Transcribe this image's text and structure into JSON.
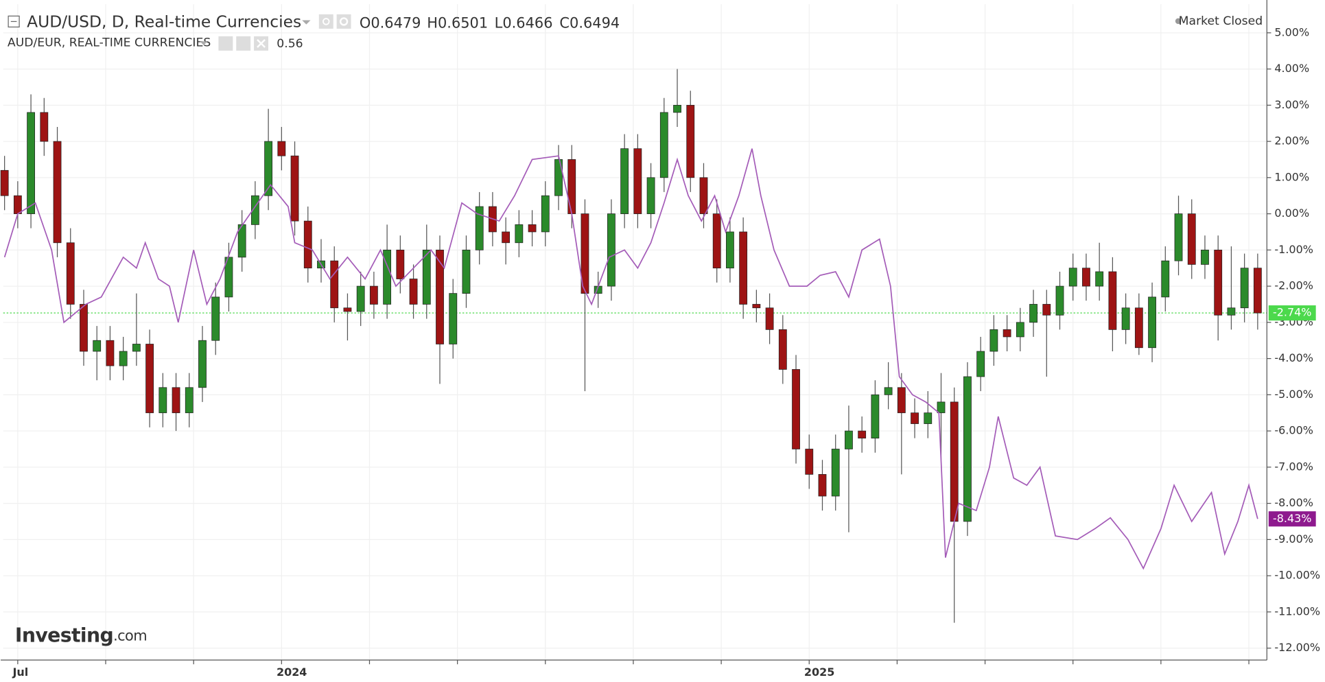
{
  "chart_data": {
    "type": "candlestick",
    "title": "AUD/USD, D, Real-time Currencies",
    "ohlc_header": [
      {
        "key": "O",
        "value": "0.6479"
      },
      {
        "key": "H",
        "value": "0.6501"
      },
      {
        "key": "L",
        "value": "0.6466"
      },
      {
        "key": "C",
        "value": "0.6494"
      }
    ],
    "status": "Market Closed",
    "logo": {
      "brand": "Investing",
      "suffix": ".com"
    },
    "ylim": [
      -12.33,
      5.79
    ],
    "yticks": [
      {
        "value": 5,
        "label": "5.00%"
      },
      {
        "value": 4,
        "label": "4.00%"
      },
      {
        "value": 3,
        "label": "3.00%"
      },
      {
        "value": 2,
        "label": "2.00%"
      },
      {
        "value": 1,
        "label": "1.00%"
      },
      {
        "value": 0,
        "label": "0.00%"
      },
      {
        "value": -1,
        "label": "-1.00%"
      },
      {
        "value": -2,
        "label": "-2.00%"
      },
      {
        "value": -3,
        "label": "-3.00%"
      },
      {
        "value": -4,
        "label": "-4.00%"
      },
      {
        "value": -5,
        "label": "-5.00%"
      },
      {
        "value": -6,
        "label": "-6.00%"
      },
      {
        "value": -7,
        "label": "-7.00%"
      },
      {
        "value": -8,
        "label": "-8.00%"
      },
      {
        "value": -9,
        "label": "-9.00%"
      },
      {
        "value": -10,
        "label": "-10.00%"
      },
      {
        "value": -11,
        "label": "-11.00%"
      },
      {
        "value": -12,
        "label": "-12.00%"
      }
    ],
    "xlim": [
      -0.33,
      28.41
    ],
    "xticks": [
      {
        "value": 0,
        "label": "Jul"
      },
      {
        "value": 6,
        "label": "2024"
      },
      {
        "value": 18,
        "label": "2025"
      }
    ],
    "xgrid": [
      2,
      4,
      8,
      10,
      12,
      14,
      16,
      20,
      22,
      24,
      26,
      28
    ],
    "grid": true,
    "candles": {
      "up_color": "#2b8a2b",
      "down_color": "#9e1414",
      "last_label": "-2.74%",
      "last_color": "#4cd94c",
      "x": [
        -0.3,
        0.0,
        0.3,
        0.6,
        0.9,
        1.2,
        1.5,
        1.8,
        2.1,
        2.4,
        2.7,
        3.0,
        3.3,
        3.6,
        3.9,
        4.2,
        4.5,
        4.8,
        5.1,
        5.4,
        5.7,
        6.0,
        6.3,
        6.6,
        6.9,
        7.2,
        7.5,
        7.8,
        8.1,
        8.4,
        8.7,
        9.0,
        9.3,
        9.6,
        9.9,
        10.2,
        10.5,
        10.8,
        11.1,
        11.4,
        11.7,
        12.0,
        12.3,
        12.6,
        12.9,
        13.2,
        13.5,
        13.8,
        14.1,
        14.4,
        14.7,
        15.0,
        15.3,
        15.6,
        15.9,
        16.2,
        16.5,
        16.8,
        17.1,
        17.4,
        17.7,
        18.0,
        18.3,
        18.6,
        18.9,
        19.2,
        19.5,
        19.8,
        20.1,
        20.4,
        20.7,
        21.0,
        21.3,
        21.6,
        21.9,
        22.2,
        22.5,
        22.8,
        23.1,
        23.4,
        23.7,
        24.0,
        24.3,
        24.6,
        24.9,
        25.2,
        25.5,
        25.8,
        26.1,
        26.4,
        26.7,
        27.0,
        27.3,
        27.6,
        27.9,
        28.2
      ],
      "open": [
        1.2,
        0.5,
        0.0,
        2.8,
        2.0,
        -0.8,
        -2.5,
        -3.8,
        -3.5,
        -4.2,
        -3.8,
        -3.6,
        -5.5,
        -4.8,
        -5.5,
        -4.8,
        -3.5,
        -2.3,
        -1.2,
        -0.3,
        0.5,
        2.0,
        1.6,
        -0.2,
        -1.5,
        -1.3,
        -2.6,
        -2.7,
        -2.0,
        -2.5,
        -1.0,
        -1.8,
        -2.5,
        -1.0,
        -3.6,
        -2.2,
        -1.0,
        0.2,
        -0.5,
        -0.8,
        -0.3,
        -0.5,
        0.5,
        1.5,
        0.0,
        -2.2,
        -2.0,
        0.0,
        1.8,
        0.0,
        1.0,
        2.8,
        3.0,
        1.0,
        0.0,
        -1.5,
        -0.5,
        -2.5,
        -2.6,
        -3.2,
        -4.3,
        -6.5,
        -7.2,
        -7.8,
        -6.5,
        -6.0,
        -6.2,
        -5.0,
        -4.8,
        -5.5,
        -5.8,
        -5.5,
        -5.2,
        -8.5,
        -4.5,
        -3.8,
        -3.2,
        -3.4,
        -3.0,
        -2.5,
        -2.8,
        -2.0,
        -1.5,
        -2.0,
        -1.6,
        -3.2,
        -2.6,
        -3.7,
        -2.3,
        -1.3,
        0.0,
        -1.4,
        -1.0,
        -2.8,
        -2.6,
        -1.5
      ],
      "high": [
        1.6,
        0.9,
        3.3,
        3.2,
        2.4,
        -0.4,
        -2.1,
        -3.1,
        -3.1,
        -3.4,
        -2.2,
        -3.2,
        -4.4,
        -4.4,
        -4.4,
        -3.1,
        -1.9,
        -0.8,
        0.1,
        0.9,
        2.9,
        2.4,
        2.0,
        0.2,
        -0.7,
        -0.9,
        -2.2,
        -1.6,
        -1.6,
        -0.3,
        -0.6,
        -1.4,
        -0.3,
        -0.6,
        -1.8,
        -0.6,
        0.6,
        0.6,
        -0.1,
        0.1,
        0.1,
        0.9,
        1.9,
        1.9,
        0.4,
        -1.6,
        0.4,
        2.2,
        2.2,
        1.4,
        3.2,
        4.0,
        3.4,
        1.4,
        0.4,
        -0.1,
        -0.1,
        -2.1,
        -2.2,
        -2.8,
        -3.9,
        -6.1,
        -6.8,
        -6.1,
        -5.3,
        -5.6,
        -4.6,
        -4.1,
        -4.4,
        -5.1,
        -4.9,
        -4.4,
        -4.8,
        -4.1,
        -3.4,
        -2.8,
        -2.8,
        -2.6,
        -2.1,
        -2.1,
        -1.6,
        -1.1,
        -1.1,
        -0.8,
        -1.2,
        -2.2,
        -2.2,
        -1.9,
        -0.9,
        0.5,
        0.4,
        -0.6,
        -0.6,
        -0.9,
        -1.1,
        -1.1
      ],
      "low": [
        0.1,
        -0.4,
        -0.4,
        1.6,
        -1.2,
        -2.9,
        -4.2,
        -4.6,
        -4.6,
        -4.6,
        -4.2,
        -5.9,
        -5.9,
        -6.0,
        -5.9,
        -5.2,
        -3.9,
        -2.7,
        -1.6,
        -0.7,
        0.1,
        1.2,
        -0.6,
        -1.9,
        -1.9,
        -3.0,
        -3.5,
        -3.1,
        -2.9,
        -2.9,
        -2.2,
        -2.9,
        -2.9,
        -4.7,
        -4.0,
        -2.6,
        -1.4,
        -0.9,
        -1.4,
        -1.2,
        -0.9,
        -0.9,
        0.1,
        -0.4,
        -4.9,
        -2.6,
        -2.4,
        -0.4,
        -0.4,
        -0.4,
        0.6,
        2.4,
        0.6,
        -0.4,
        -1.9,
        -1.9,
        -2.9,
        -3.0,
        -3.6,
        -4.7,
        -6.9,
        -7.6,
        -8.2,
        -8.2,
        -8.8,
        -6.6,
        -6.6,
        -5.4,
        -7.2,
        -6.2,
        -6.2,
        -6.8,
        -11.3,
        -8.9,
        -4.9,
        -4.2,
        -3.8,
        -3.8,
        -3.4,
        -4.5,
        -3.2,
        -2.4,
        -2.4,
        -2.4,
        -3.8,
        -3.6,
        -3.9,
        -4.1,
        -2.7,
        -1.7,
        -1.8,
        -1.8,
        -3.5,
        -3.2,
        -3.0,
        -3.2
      ],
      "close": [
        0.5,
        0.0,
        2.8,
        2.0,
        -0.8,
        -2.5,
        -3.8,
        -3.5,
        -4.2,
        -3.8,
        -3.6,
        -5.5,
        -4.8,
        -5.5,
        -4.8,
        -3.5,
        -2.3,
        -1.2,
        -0.3,
        0.5,
        2.0,
        1.6,
        -0.2,
        -1.5,
        -1.3,
        -2.6,
        -2.7,
        -2.0,
        -2.5,
        -1.0,
        -1.8,
        -2.5,
        -1.0,
        -3.6,
        -2.2,
        -1.0,
        0.2,
        -0.5,
        -0.8,
        -0.3,
        -0.5,
        0.5,
        1.5,
        0.0,
        -2.2,
        -2.0,
        0.0,
        1.8,
        0.0,
        1.0,
        2.8,
        3.0,
        1.0,
        0.0,
        -1.5,
        -0.5,
        -2.5,
        -2.6,
        -3.2,
        -4.3,
        -6.5,
        -7.2,
        -7.8,
        -6.5,
        -6.0,
        -6.2,
        -5.0,
        -4.8,
        -5.5,
        -5.8,
        -5.5,
        -5.2,
        -8.5,
        -4.5,
        -3.8,
        -3.2,
        -3.4,
        -3.0,
        -2.5,
        -2.8,
        -2.0,
        -1.5,
        -2.0,
        -1.6,
        -3.2,
        -2.6,
        -3.7,
        -2.3,
        -1.3,
        0.0,
        -1.4,
        -1.0,
        -2.8,
        -2.6,
        -1.5,
        -2.74
      ]
    },
    "compare": {
      "name": "AUD/EUR, REAL-TIME CURRENCIES",
      "value": "0.56",
      "color": "#a45cb8",
      "last_label": "-8.43%",
      "last_color": "#8e1a8e",
      "x": [
        -0.3,
        0.0,
        0.4,
        0.77,
        1.05,
        1.55,
        1.9,
        2.4,
        2.7,
        2.9,
        3.2,
        3.45,
        3.65,
        4.0,
        4.3,
        4.6,
        5.0,
        5.4,
        5.75,
        6.15,
        6.3,
        6.7,
        7.1,
        7.5,
        7.9,
        8.25,
        8.6,
        9.0,
        9.4,
        9.7,
        10.1,
        10.45,
        10.95,
        11.3,
        11.7,
        12.3,
        12.6,
        12.85,
        13.05,
        13.45,
        13.8,
        14.1,
        14.4,
        14.7,
        15.0,
        15.25,
        15.55,
        15.85,
        16.1,
        16.4,
        16.7,
        16.9,
        17.2,
        17.55,
        17.95,
        18.25,
        18.6,
        18.9,
        19.2,
        19.6,
        19.85,
        20.05,
        20.35,
        20.65,
        20.95,
        21.1,
        21.4,
        21.8,
        22.1,
        22.3,
        22.65,
        22.95,
        23.25,
        23.6,
        24.1,
        24.5,
        24.85,
        25.25,
        25.6,
        26.0,
        26.3,
        26.7,
        27.15,
        27.45,
        27.75,
        28.0,
        28.2
      ],
      "values": [
        -1.2,
        0.0,
        0.3,
        -1.0,
        -3.0,
        -2.5,
        -2.3,
        -1.2,
        -1.5,
        -0.8,
        -1.8,
        -2.0,
        -3.0,
        -1.0,
        -2.5,
        -1.8,
        -0.5,
        0.2,
        0.8,
        0.2,
        -0.8,
        -1.0,
        -1.8,
        -1.2,
        -1.8,
        -1.0,
        -2.0,
        -1.5,
        -1.0,
        -1.5,
        0.3,
        0.0,
        -0.2,
        0.5,
        1.5,
        1.6,
        0.0,
        -2.0,
        -2.5,
        -1.2,
        -1.0,
        -1.5,
        -0.8,
        0.3,
        1.5,
        0.5,
        -0.2,
        0.5,
        -0.5,
        0.5,
        1.8,
        0.5,
        -1.0,
        -2.0,
        -2.0,
        -1.7,
        -1.6,
        -2.3,
        -1.0,
        -0.7,
        -2.0,
        -4.5,
        -5.0,
        -5.2,
        -5.5,
        -9.5,
        -8.0,
        -8.2,
        -7.0,
        -5.6,
        -7.3,
        -7.5,
        -7.0,
        -8.9,
        -9.0,
        -8.7,
        -8.4,
        -9.0,
        -9.8,
        -8.7,
        -7.5,
        -8.5,
        -7.7,
        -9.4,
        -8.5,
        -7.5,
        -8.43
      ]
    }
  }
}
